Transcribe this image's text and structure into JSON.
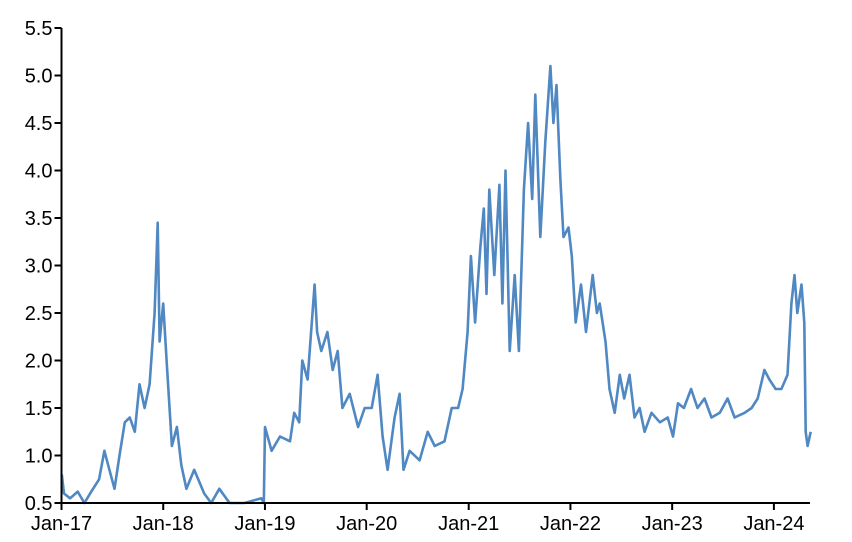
{
  "chart_data": {
    "type": "line",
    "title": "",
    "xlabel": "",
    "ylabel": "",
    "ylim": [
      0.5,
      5.5
    ],
    "xlim": [
      "2017-01-01",
      "2024-05-15"
    ],
    "yticks": [
      "0.5",
      "1.0",
      "1.5",
      "2.0",
      "2.5",
      "3.0",
      "3.5",
      "4.0",
      "4.5",
      "5.0",
      "5.5"
    ],
    "xticks": [
      {
        "date": "2017-01-01",
        "label": "Jan-17"
      },
      {
        "date": "2018-01-01",
        "label": "Jan-18"
      },
      {
        "date": "2019-01-01",
        "label": "Jan-19"
      },
      {
        "date": "2020-01-01",
        "label": "Jan-20"
      },
      {
        "date": "2021-01-01",
        "label": "Jan-21"
      },
      {
        "date": "2022-01-01",
        "label": "Jan-22"
      },
      {
        "date": "2023-01-01",
        "label": "Jan-23"
      },
      {
        "date": "2024-01-01",
        "label": "Jan-24"
      }
    ],
    "grid": false,
    "legend": "none",
    "series": [
      {
        "color": "#4f88c2",
        "points": [
          [
            "2017-01-02",
            0.8
          ],
          [
            "2017-01-10",
            0.6
          ],
          [
            "2017-02-01",
            0.55
          ],
          [
            "2017-02-28",
            0.62
          ],
          [
            "2017-03-24",
            0.5
          ],
          [
            "2017-04-18",
            0.62
          ],
          [
            "2017-05-16",
            0.75
          ],
          [
            "2017-06-04",
            1.05
          ],
          [
            "2017-06-22",
            0.85
          ],
          [
            "2017-07-10",
            0.65
          ],
          [
            "2017-07-28",
            1.0
          ],
          [
            "2017-08-16",
            1.35
          ],
          [
            "2017-09-03",
            1.4
          ],
          [
            "2017-09-21",
            1.25
          ],
          [
            "2017-10-08",
            1.75
          ],
          [
            "2017-10-26",
            1.5
          ],
          [
            "2017-11-13",
            1.75
          ],
          [
            "2017-12-01",
            2.5
          ],
          [
            "2017-12-12",
            3.45
          ],
          [
            "2017-12-19",
            2.2
          ],
          [
            "2018-01-01",
            2.6
          ],
          [
            "2018-01-13",
            2.0
          ],
          [
            "2018-02-01",
            1.1
          ],
          [
            "2018-02-19",
            1.3
          ],
          [
            "2018-03-07",
            0.9
          ],
          [
            "2018-03-25",
            0.65
          ],
          [
            "2018-04-22",
            0.85
          ],
          [
            "2018-05-28",
            0.6
          ],
          [
            "2018-06-22",
            0.5
          ],
          [
            "2018-07-21",
            0.65
          ],
          [
            "2018-08-27",
            0.5
          ],
          [
            "2018-10-19",
            0.5
          ],
          [
            "2018-12-19",
            0.55
          ],
          [
            "2018-12-28",
            0.5
          ],
          [
            "2019-01-01",
            1.3
          ],
          [
            "2019-01-25",
            1.05
          ],
          [
            "2019-02-24",
            1.2
          ],
          [
            "2019-04-01",
            1.15
          ],
          [
            "2019-04-16",
            1.45
          ],
          [
            "2019-05-04",
            1.35
          ],
          [
            "2019-05-15",
            2.0
          ],
          [
            "2019-06-03",
            1.8
          ],
          [
            "2019-06-28",
            2.8
          ],
          [
            "2019-07-07",
            2.3
          ],
          [
            "2019-07-22",
            2.1
          ],
          [
            "2019-08-13",
            2.3
          ],
          [
            "2019-09-01",
            1.9
          ],
          [
            "2019-09-19",
            2.1
          ],
          [
            "2019-10-06",
            1.5
          ],
          [
            "2019-11-01",
            1.65
          ],
          [
            "2019-12-01",
            1.3
          ],
          [
            "2019-12-25",
            1.5
          ],
          [
            "2020-01-19",
            1.5
          ],
          [
            "2020-02-09",
            1.85
          ],
          [
            "2020-02-27",
            1.2
          ],
          [
            "2020-03-16",
            0.85
          ],
          [
            "2020-04-10",
            1.4
          ],
          [
            "2020-04-28",
            1.65
          ],
          [
            "2020-05-12",
            0.85
          ],
          [
            "2020-06-03",
            1.05
          ],
          [
            "2020-07-09",
            0.95
          ],
          [
            "2020-08-07",
            1.25
          ],
          [
            "2020-09-01",
            1.1
          ],
          [
            "2020-10-06",
            1.15
          ],
          [
            "2020-11-01",
            1.5
          ],
          [
            "2020-11-24",
            1.5
          ],
          [
            "2020-12-10",
            1.7
          ],
          [
            "2020-12-28",
            2.3
          ],
          [
            "2021-01-09",
            3.1
          ],
          [
            "2021-01-24",
            2.4
          ],
          [
            "2021-02-12",
            3.2
          ],
          [
            "2021-02-24",
            3.6
          ],
          [
            "2021-03-06",
            2.7
          ],
          [
            "2021-03-16",
            3.8
          ],
          [
            "2021-04-03",
            2.9
          ],
          [
            "2021-04-21",
            3.85
          ],
          [
            "2021-05-02",
            2.6
          ],
          [
            "2021-05-13",
            4.0
          ],
          [
            "2021-05-28",
            2.1
          ],
          [
            "2021-06-15",
            2.9
          ],
          [
            "2021-06-30",
            2.1
          ],
          [
            "2021-07-18",
            3.8
          ],
          [
            "2021-08-02",
            4.5
          ],
          [
            "2021-08-17",
            3.7
          ],
          [
            "2021-08-28",
            4.8
          ],
          [
            "2021-09-15",
            3.3
          ],
          [
            "2021-10-03",
            4.3
          ],
          [
            "2021-10-21",
            5.1
          ],
          [
            "2021-11-01",
            4.5
          ],
          [
            "2021-11-12",
            4.9
          ],
          [
            "2021-11-26",
            3.9
          ],
          [
            "2021-12-07",
            3.3
          ],
          [
            "2021-12-25",
            3.4
          ],
          [
            "2022-01-06",
            3.1
          ],
          [
            "2022-01-20",
            2.4
          ],
          [
            "2022-02-08",
            2.8
          ],
          [
            "2022-02-26",
            2.3
          ],
          [
            "2022-03-22",
            2.9
          ],
          [
            "2022-04-06",
            2.5
          ],
          [
            "2022-04-16",
            2.6
          ],
          [
            "2022-05-07",
            2.2
          ],
          [
            "2022-05-21",
            1.7
          ],
          [
            "2022-06-09",
            1.45
          ],
          [
            "2022-06-27",
            1.85
          ],
          [
            "2022-07-13",
            1.6
          ],
          [
            "2022-08-01",
            1.85
          ],
          [
            "2022-08-19",
            1.4
          ],
          [
            "2022-09-06",
            1.5
          ],
          [
            "2022-09-24",
            1.25
          ],
          [
            "2022-10-19",
            1.45
          ],
          [
            "2022-11-18",
            1.35
          ],
          [
            "2022-12-16",
            1.4
          ],
          [
            "2023-01-04",
            1.2
          ],
          [
            "2023-01-22",
            1.55
          ],
          [
            "2023-02-12",
            1.5
          ],
          [
            "2023-03-10",
            1.7
          ],
          [
            "2023-04-02",
            1.5
          ],
          [
            "2023-04-27",
            1.6
          ],
          [
            "2023-05-22",
            1.4
          ],
          [
            "2023-06-21",
            1.45
          ],
          [
            "2023-07-19",
            1.6
          ],
          [
            "2023-08-13",
            1.4
          ],
          [
            "2023-09-18",
            1.45
          ],
          [
            "2023-10-13",
            1.5
          ],
          [
            "2023-11-04",
            1.6
          ],
          [
            "2023-11-28",
            1.9
          ],
          [
            "2023-12-16",
            1.8
          ],
          [
            "2024-01-07",
            1.7
          ],
          [
            "2024-01-28",
            1.7
          ],
          [
            "2024-02-19",
            1.85
          ],
          [
            "2024-03-04",
            2.6
          ],
          [
            "2024-03-15",
            2.9
          ],
          [
            "2024-03-25",
            2.5
          ],
          [
            "2024-04-09",
            2.8
          ],
          [
            "2024-04-19",
            2.4
          ],
          [
            "2024-04-24",
            1.25
          ],
          [
            "2024-05-01",
            1.1
          ],
          [
            "2024-05-12",
            1.25
          ]
        ]
      }
    ]
  }
}
